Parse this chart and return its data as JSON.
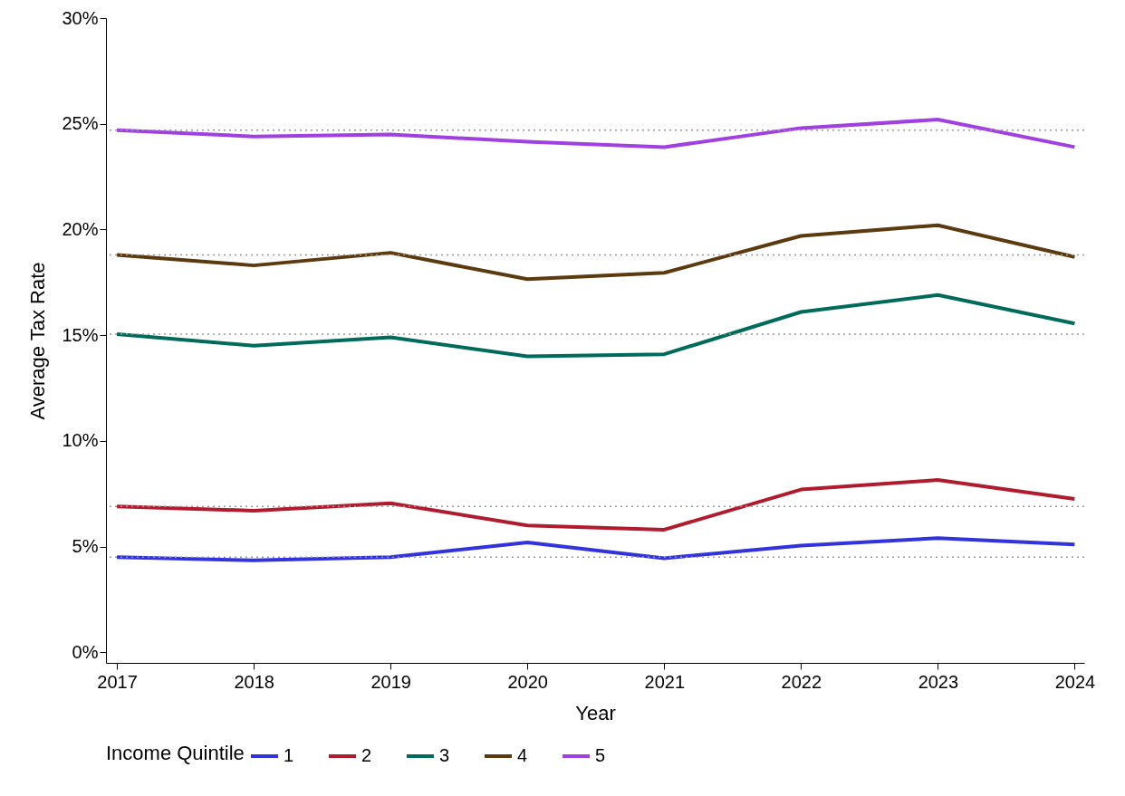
{
  "chart_data": {
    "type": "line",
    "xlabel": "Year",
    "ylabel": "Average Tax Rate",
    "legend_title": "Income Quintile",
    "legend": "bottom",
    "grid": false,
    "line_style": "solid",
    "marker": "none",
    "x": [
      2017,
      2018,
      2019,
      2020,
      2021,
      2022,
      2023,
      2024
    ],
    "xlim": [
      2016.92,
      2024.07
    ],
    "xticks": [
      2017,
      2018,
      2019,
      2020,
      2021,
      2022,
      2023,
      2024
    ],
    "ylim": [
      -0.5,
      30
    ],
    "yticks": [
      {
        "value": 0,
        "label": "0%"
      },
      {
        "value": 5,
        "label": "5%"
      },
      {
        "value": 10,
        "label": "10%"
      },
      {
        "value": 15,
        "label": "15%"
      },
      {
        "value": 20,
        "label": "20%"
      },
      {
        "value": 25,
        "label": "25%"
      },
      {
        "value": 30,
        "label": "30%"
      }
    ],
    "series": [
      {
        "name": "1",
        "color": "#3333dd",
        "values": [
          4.5,
          4.35,
          4.5,
          5.2,
          4.45,
          5.05,
          5.4,
          5.1
        ]
      },
      {
        "name": "2",
        "color": "#b01c2e",
        "values": [
          6.9,
          6.7,
          7.05,
          6.0,
          5.8,
          7.7,
          8.15,
          7.25
        ]
      },
      {
        "name": "3",
        "color": "#006b5b",
        "values": [
          15.05,
          14.5,
          14.9,
          14.0,
          14.1,
          16.1,
          16.9,
          15.55
        ]
      },
      {
        "name": "4",
        "color": "#5c3a0f",
        "values": [
          18.8,
          18.3,
          18.9,
          17.65,
          17.95,
          19.7,
          20.2,
          18.7
        ]
      },
      {
        "name": "5",
        "color": "#a040e0",
        "values": [
          24.7,
          24.4,
          24.5,
          24.15,
          23.9,
          24.8,
          25.2,
          23.9
        ]
      }
    ],
    "ref_lines": [
      {
        "axis": "y",
        "value": 4.5,
        "color": "#999999",
        "line_style": "dotted"
      },
      {
        "axis": "y",
        "value": 6.9,
        "color": "#999999",
        "line_style": "dotted"
      },
      {
        "axis": "y",
        "value": 15.05,
        "color": "#999999",
        "line_style": "dotted"
      },
      {
        "axis": "y",
        "value": 18.8,
        "color": "#999999",
        "line_style": "dotted"
      },
      {
        "axis": "y",
        "value": 24.7,
        "color": "#999999",
        "line_style": "dotted"
      }
    ]
  }
}
